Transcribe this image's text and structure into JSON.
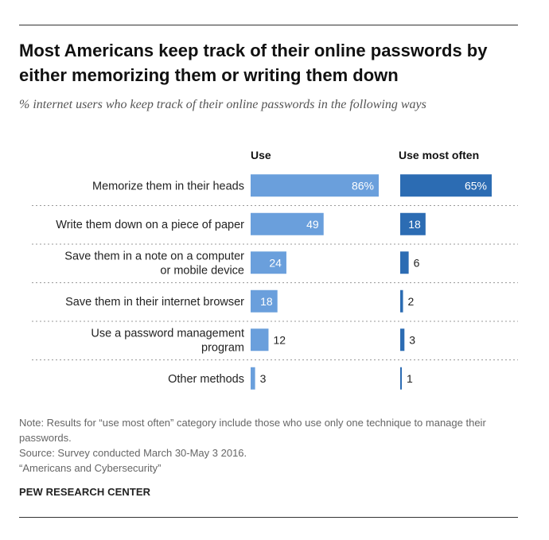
{
  "title": "Most Americans keep track of their online passwords by either memorizing them or writing them down",
  "subtitle": "% internet users who keep track of their online passwords in the following ways",
  "chart_data": {
    "type": "bar",
    "orientation": "horizontal",
    "categories": [
      [
        "Memorize them in their heads"
      ],
      [
        "Write them down on a piece of paper"
      ],
      [
        "Save them in a note on a computer",
        "or mobile device"
      ],
      [
        "Save them in their internet browser"
      ],
      [
        "Use a password management",
        "program"
      ],
      [
        "Other methods"
      ]
    ],
    "series": [
      {
        "name": "Use",
        "values": [
          86,
          49,
          24,
          18,
          12,
          3
        ],
        "labels": [
          "86%",
          "49",
          "24",
          "18",
          "12",
          "3"
        ]
      },
      {
        "name": "Use most often",
        "values": [
          65,
          18,
          6,
          2,
          3,
          1
        ],
        "labels": [
          "65%",
          "18",
          "6",
          "2",
          "3",
          "1"
        ]
      }
    ],
    "colors": {
      "use": "#6a9fdc",
      "use_most_often": "#2c6cb3",
      "separator": "#9a9a9a"
    },
    "xlim": [
      0,
      100
    ],
    "grid": false,
    "legend": "column headers above bars"
  },
  "notes": {
    "note": "Note: Results for “use most often” category include those who use only one technique to manage their passwords.",
    "source": "Source: Survey conducted March 30-May 3 2016.",
    "report": "“Americans and Cybersecurity”"
  },
  "source_org": "PEW RESEARCH CENTER"
}
